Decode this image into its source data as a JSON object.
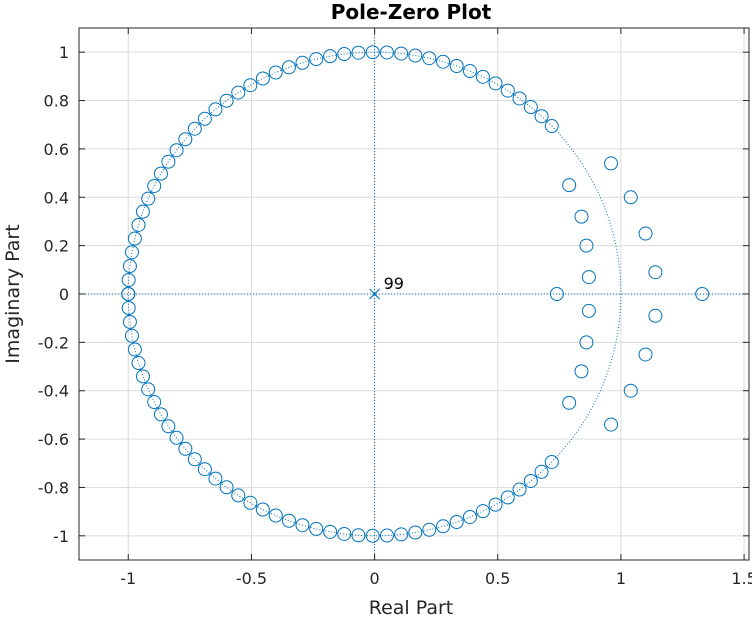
{
  "chart_data": {
    "type": "scatter",
    "title": "Pole-Zero Plot",
    "xlabel": "Real Part",
    "ylabel": "Imaginary Part",
    "xlim": [
      -1.2,
      1.52
    ],
    "ylim": [
      -1.1,
      1.1
    ],
    "grid": true,
    "x_ticks": [
      -1,
      -0.5,
      0,
      0.5,
      1,
      1.5
    ],
    "x_tick_labels": [
      "-1",
      "-0.5",
      "0",
      "0.5",
      "1",
      "1.5"
    ],
    "y_ticks": [
      1,
      0.8,
      0.6,
      0.4,
      0.2,
      0,
      -0.2,
      -0.4,
      -0.6,
      -0.8,
      -1
    ],
    "y_tick_labels": [
      "1",
      "0.8",
      "0.6",
      "0.4",
      "0.2",
      "0",
      "-0.2",
      "-0.4",
      "-0.6",
      "-0.8",
      "-1"
    ],
    "color": "#0072bd",
    "unit_circle": true,
    "poles": {
      "marker": "x",
      "points": [
        [
          0,
          0
        ]
      ],
      "multiplicity_label": "99"
    },
    "zeros": {
      "marker": "o",
      "circle_zeros": {
        "magnitude": 1,
        "count_per_half": 42,
        "angle_start_deg": 44,
        "angle_end_deg": 180
      },
      "points": [
        [
          0.74,
          0.0
        ],
        [
          1.33,
          0.0
        ],
        [
          0.79,
          0.45
        ],
        [
          0.79,
          -0.45
        ],
        [
          0.84,
          0.32
        ],
        [
          0.84,
          -0.32
        ],
        [
          0.86,
          0.2
        ],
        [
          0.86,
          -0.2
        ],
        [
          0.87,
          0.07
        ],
        [
          0.87,
          -0.07
        ],
        [
          0.96,
          0.54
        ],
        [
          0.96,
          -0.54
        ],
        [
          1.04,
          0.4
        ],
        [
          1.04,
          -0.4
        ],
        [
          1.1,
          0.25
        ],
        [
          1.1,
          -0.25
        ],
        [
          1.14,
          0.09
        ],
        [
          1.14,
          -0.09
        ]
      ]
    }
  }
}
